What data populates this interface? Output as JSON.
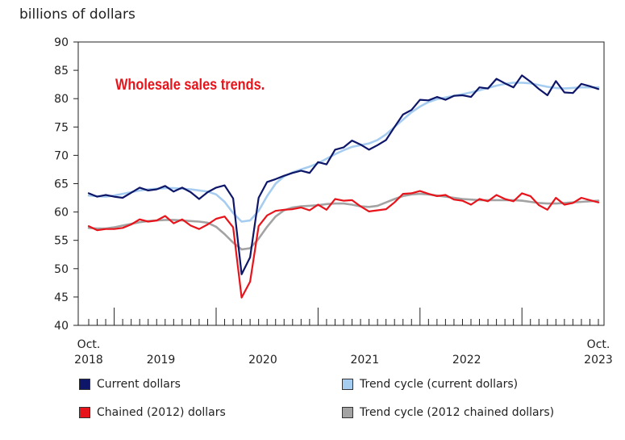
{
  "chart_data": {
    "type": "line",
    "title": "",
    "ylabel": "billions of dollars",
    "annotation": "Wholesale sales trends.",
    "ylim": [
      40,
      90
    ],
    "yticks": [
      40,
      45,
      50,
      55,
      60,
      65,
      70,
      75,
      80,
      85,
      90
    ],
    "x_start_label": "Oct.\n2018",
    "x_end_label": "Oct.\n2023",
    "year_labels": [
      "2019",
      "2020",
      "2021",
      "2022"
    ],
    "months": 61,
    "series": [
      {
        "name": "Current dollars",
        "color": "#0d1668",
        "style": "solid",
        "values": [
          63.3,
          62.7,
          63.0,
          62.7,
          62.5,
          63.4,
          64.3,
          63.8,
          64.0,
          64.6,
          63.6,
          64.3,
          63.5,
          62.3,
          63.5,
          64.3,
          64.7,
          62.4,
          49.0,
          52.0,
          62.5,
          65.3,
          65.8,
          66.4,
          66.9,
          67.3,
          66.9,
          68.8,
          68.4,
          71.0,
          71.4,
          72.6,
          71.9,
          71.0,
          71.8,
          72.7,
          75.0,
          77.2,
          78.0,
          79.8,
          79.7,
          80.3,
          79.8,
          80.5,
          80.6,
          80.3,
          82.0,
          81.8,
          83.5,
          82.7,
          82.0,
          84.1,
          83.0,
          81.7,
          80.6,
          83.1,
          81.1,
          81.0,
          82.6,
          82.2,
          81.7
        ]
      },
      {
        "name": "Trend cycle (current dollars)",
        "color": "#a6cdf0",
        "style": "solid",
        "values": [
          62.9,
          62.8,
          62.7,
          62.9,
          63.2,
          63.5,
          63.8,
          64.0,
          64.1,
          64.2,
          64.2,
          64.1,
          64.0,
          63.8,
          63.6,
          63.1,
          61.8,
          59.8,
          58.3,
          58.5,
          60.2,
          62.8,
          65.0,
          66.3,
          67.0,
          67.5,
          68.0,
          68.6,
          69.4,
          70.2,
          70.9,
          71.5,
          71.8,
          72.1,
          72.7,
          73.7,
          75.0,
          76.3,
          77.6,
          78.6,
          79.4,
          79.9,
          80.2,
          80.5,
          80.8,
          81.1,
          81.5,
          81.9,
          82.3,
          82.6,
          82.8,
          82.8,
          82.7,
          82.4,
          82.1,
          81.9,
          81.8,
          81.9,
          82.0,
          82.0,
          82.0
        ]
      },
      {
        "name": "Chained (2012) dollars",
        "color": "#e8141b",
        "style": "solid",
        "values": [
          57.5,
          56.8,
          57.0,
          57.0,
          57.2,
          57.8,
          58.7,
          58.3,
          58.5,
          59.3,
          58.0,
          58.7,
          57.6,
          57.0,
          57.8,
          58.8,
          59.2,
          57.3,
          44.9,
          47.7,
          57.5,
          59.4,
          60.2,
          60.4,
          60.5,
          60.8,
          60.3,
          61.3,
          60.4,
          62.3,
          62.0,
          62.1,
          61.0,
          60.1,
          60.3,
          60.5,
          61.7,
          63.2,
          63.3,
          63.7,
          63.2,
          62.8,
          63.0,
          62.2,
          62.0,
          61.3,
          62.3,
          61.9,
          63.0,
          62.3,
          61.9,
          63.3,
          62.8,
          61.2,
          60.4,
          62.5,
          61.3,
          61.6,
          62.5,
          62.1,
          61.7
        ]
      },
      {
        "name": "Trend cycle (2012 chained dollars)",
        "color": "#a3a3a3",
        "style": "solid",
        "values": [
          57.2,
          57.1,
          57.1,
          57.3,
          57.6,
          57.9,
          58.2,
          58.4,
          58.5,
          58.6,
          58.6,
          58.5,
          58.4,
          58.3,
          58.1,
          57.4,
          56.1,
          54.6,
          53.4,
          53.6,
          55.3,
          57.4,
          59.2,
          60.3,
          60.8,
          61.0,
          61.1,
          61.2,
          61.4,
          61.5,
          61.5,
          61.3,
          61.0,
          60.9,
          61.1,
          61.7,
          62.3,
          62.8,
          63.1,
          63.2,
          63.1,
          62.9,
          62.7,
          62.5,
          62.3,
          62.2,
          62.1,
          62.1,
          62.1,
          62.1,
          62.1,
          62.0,
          61.8,
          61.6,
          61.5,
          61.5,
          61.6,
          61.7,
          61.8,
          61.9,
          62.0
        ]
      }
    ],
    "legend": [
      {
        "label": "Current dollars",
        "color": "#0d1668"
      },
      {
        "label": "Trend cycle (current dollars)",
        "color": "#a6cdf0"
      },
      {
        "label": "Chained (2012) dollars",
        "color": "#e8141b"
      },
      {
        "label": "Trend cycle (2012 chained dollars)",
        "color": "#a3a3a3"
      }
    ]
  }
}
